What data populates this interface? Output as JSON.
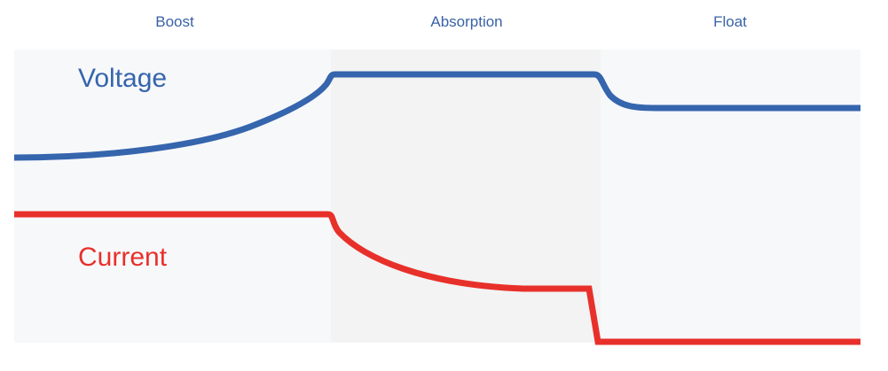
{
  "stages": [
    "Boost",
    "Absorption",
    "Float"
  ],
  "series": {
    "voltage": {
      "label": "Voltage",
      "color": "#3565ad"
    },
    "current": {
      "label": "Current",
      "color": "#e8302a"
    }
  },
  "colors": {
    "boost_bg": "#f7f8fa",
    "absorption_bg": "#f3f3f3",
    "float_bg": "#f7f8fa"
  }
}
